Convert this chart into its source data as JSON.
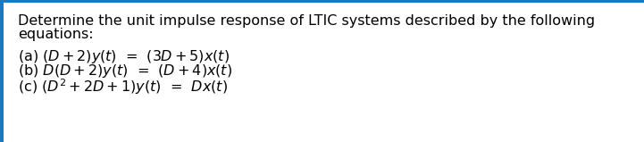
{
  "title_line1": "Determine the unit impulse response of LTIC systems described by the following",
  "title_line2": "equations:",
  "bg_color": "#ffffff",
  "border_left_color": "#1a7abf",
  "text_color": "#000000",
  "font_size_title": 11.5,
  "font_size_eq": 11.5,
  "border_width": 4,
  "eq_a_prefix": "(a) ",
  "eq_a_math": "$(D + 2)y(t)$  =  $(3D + 5)x(t)$",
  "eq_b_prefix": "(b) ",
  "eq_b_math": "$D(D + 2)y(t)$  =  $(D + 4)x(t)$",
  "eq_c_prefix": "(c) ",
  "eq_c_math": "$(D^2 + 2D + 1)y(t)$  =  $Dx(t)$"
}
